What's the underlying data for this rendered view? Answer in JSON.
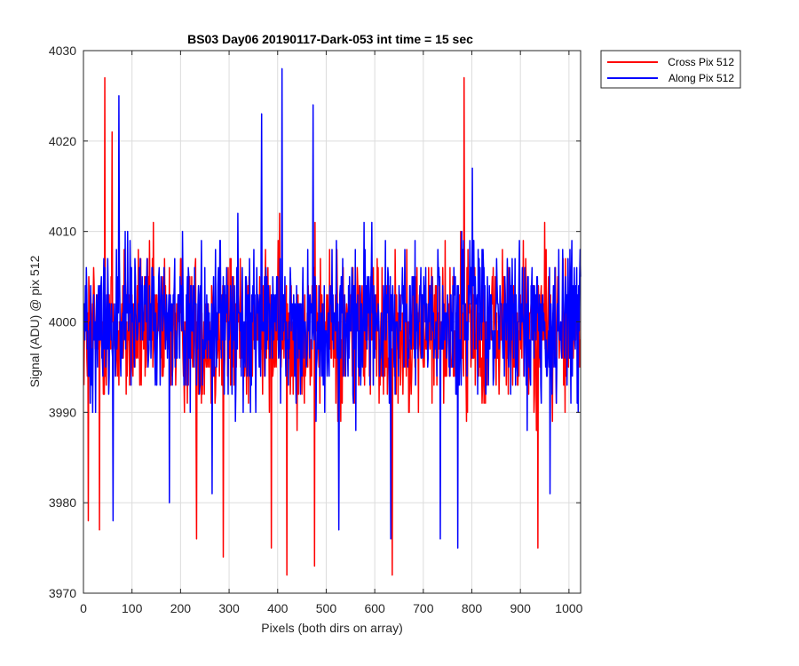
{
  "chart_data": {
    "type": "line",
    "title": "BS03 Day06 20190117-Dark-053 int time = 15 sec",
    "xlabel": "Pixels (both dirs on array)",
    "ylabel": "Signal (ADU) @ pix 512",
    "xlim": [
      0,
      1024
    ],
    "ylim": [
      3970,
      4030
    ],
    "xticks": [
      0,
      100,
      200,
      300,
      400,
      500,
      600,
      700,
      800,
      900,
      1000
    ],
    "yticks": [
      3970,
      3980,
      3990,
      4000,
      4010,
      4020,
      4030
    ],
    "grid": true,
    "legend_position": "outside-top-right",
    "series": [
      {
        "name": "Cross Pix 512",
        "color": "#ff0000",
        "n_points": 1024,
        "baseline": 3999,
        "noise_amplitude": 6,
        "peaks": [
          {
            "x": 9,
            "y": 3978
          },
          {
            "x": 32,
            "y": 3977
          },
          {
            "x": 43,
            "y": 4027
          },
          {
            "x": 58,
            "y": 4021
          },
          {
            "x": 232,
            "y": 3976
          },
          {
            "x": 287,
            "y": 3974
          },
          {
            "x": 386,
            "y": 3975
          },
          {
            "x": 418,
            "y": 3972
          },
          {
            "x": 475,
            "y": 3973
          },
          {
            "x": 635,
            "y": 3972
          },
          {
            "x": 783,
            "y": 4027
          },
          {
            "x": 935,
            "y": 3975
          }
        ]
      },
      {
        "name": "Along Pix 512",
        "color": "#0000ff",
        "n_points": 1024,
        "baseline": 4000,
        "noise_amplitude": 6,
        "peaks": [
          {
            "x": 60,
            "y": 3978
          },
          {
            "x": 72,
            "y": 4025
          },
          {
            "x": 176,
            "y": 3980
          },
          {
            "x": 264,
            "y": 3981
          },
          {
            "x": 366,
            "y": 4023
          },
          {
            "x": 408,
            "y": 4028
          },
          {
            "x": 472,
            "y": 4024
          },
          {
            "x": 525,
            "y": 3977
          },
          {
            "x": 632,
            "y": 3976
          },
          {
            "x": 734,
            "y": 3976
          },
          {
            "x": 770,
            "y": 3975
          },
          {
            "x": 800,
            "y": 4017
          },
          {
            "x": 960,
            "y": 3981
          }
        ]
      }
    ]
  }
}
